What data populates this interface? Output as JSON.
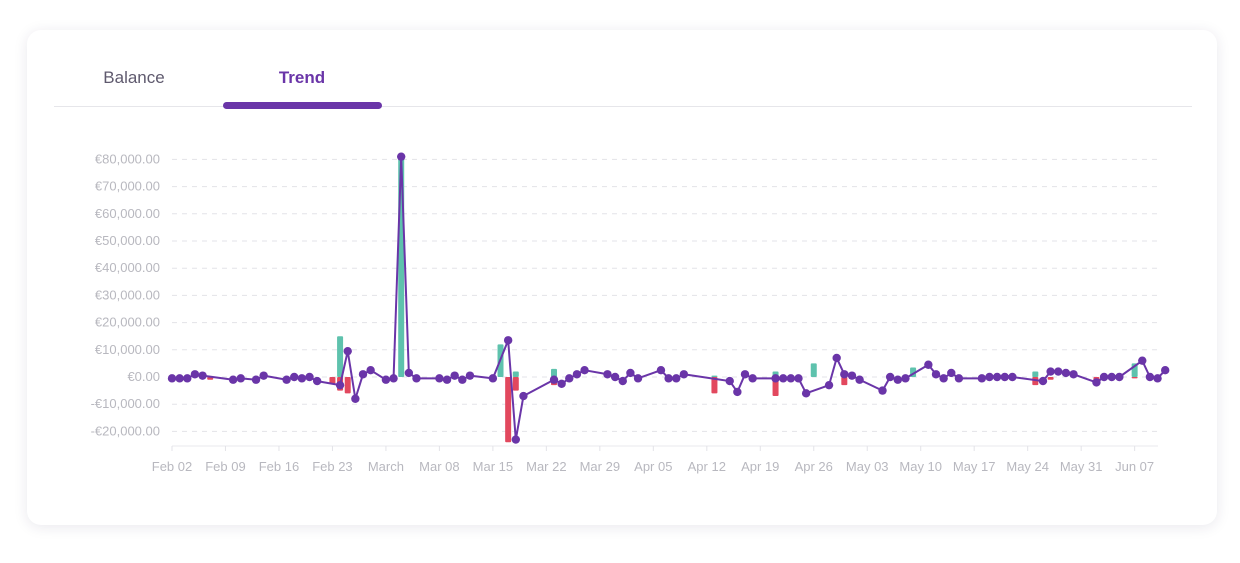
{
  "tabs": [
    {
      "label": "Balance",
      "active": false
    },
    {
      "label": "Trend",
      "active": true
    }
  ],
  "colors": {
    "accent": "#6a35a8",
    "income": "#5ec2ad",
    "expense": "#e2485e",
    "line": "#6a35a8",
    "grid": "#e3e3e8",
    "tick_text": "#b8b8bf"
  },
  "chart_data": {
    "type": "bar",
    "title": "",
    "xlabel": "",
    "ylabel": "",
    "ylim": [
      -22000,
      82000
    ],
    "y_ticks": [
      80000,
      70000,
      60000,
      50000,
      40000,
      30000,
      20000,
      10000,
      0,
      -10000,
      -20000
    ],
    "y_tick_labels": [
      "€80,000.00",
      "€70,000.00",
      "€60,000.00",
      "€50,000.00",
      "€40,000.00",
      "€30,000.00",
      "€20,000.00",
      "€10,000.00",
      "€0.00",
      "-€10,000.00",
      "-€20,000.00"
    ],
    "x_ticks": [
      "Feb 02",
      "Feb 09",
      "Feb 16",
      "Feb 23",
      "March",
      "Mar 08",
      "Mar 15",
      "Mar 22",
      "Mar 29",
      "Apr 05",
      "Apr 12",
      "Apr 19",
      "Apr 26",
      "May 03",
      "May 10",
      "May 17",
      "May 24",
      "May 31",
      "Jun 07"
    ],
    "grid": true,
    "legend": "none",
    "series": [
      {
        "name": "",
        "kind": "bars-income",
        "points": [
          {
            "date": "2021-02-24",
            "value": 15000
          },
          {
            "date": "2021-02-27",
            "value": 2000
          },
          {
            "date": "2021-03-04",
            "value": 81000
          },
          {
            "date": "2021-03-17",
            "value": 12000
          },
          {
            "date": "2021-03-19",
            "value": 2000
          },
          {
            "date": "2021-03-24",
            "value": 3000
          },
          {
            "date": "2021-04-14",
            "value": 500
          },
          {
            "date": "2021-04-22",
            "value": 2000
          },
          {
            "date": "2021-04-27",
            "value": 5000
          },
          {
            "date": "2021-05-10",
            "value": 3500
          },
          {
            "date": "2021-05-26",
            "value": 2000
          },
          {
            "date": "2021-06-08",
            "value": 5000
          }
        ]
      },
      {
        "name": "",
        "kind": "bars-expense",
        "points": [
          {
            "date": "2021-02-07",
            "value": -1000
          },
          {
            "date": "2021-02-23",
            "value": -2500
          },
          {
            "date": "2021-02-24",
            "value": -5000
          },
          {
            "date": "2021-02-25",
            "value": -6000
          },
          {
            "date": "2021-03-18",
            "value": -24000
          },
          {
            "date": "2021-03-19",
            "value": -5000
          },
          {
            "date": "2021-03-24",
            "value": -3000
          },
          {
            "date": "2021-04-14",
            "value": -6000
          },
          {
            "date": "2021-04-22",
            "value": -7000
          },
          {
            "date": "2021-05-01",
            "value": -3000
          },
          {
            "date": "2021-05-26",
            "value": -3000
          },
          {
            "date": "2021-05-28",
            "value": -1000
          },
          {
            "date": "2021-06-03",
            "value": -1500
          },
          {
            "date": "2021-06-08",
            "value": -500
          }
        ]
      },
      {
        "name": "",
        "kind": "line",
        "points": [
          {
            "date": "2021-02-02",
            "value": -500
          },
          {
            "date": "2021-02-03",
            "value": -500
          },
          {
            "date": "2021-02-04",
            "value": -500
          },
          {
            "date": "2021-02-05",
            "value": 1000
          },
          {
            "date": "2021-02-06",
            "value": 500
          },
          {
            "date": "2021-02-10",
            "value": -1000
          },
          {
            "date": "2021-02-11",
            "value": -500
          },
          {
            "date": "2021-02-13",
            "value": -1000
          },
          {
            "date": "2021-02-14",
            "value": 500
          },
          {
            "date": "2021-02-17",
            "value": -1000
          },
          {
            "date": "2021-02-18",
            "value": 0
          },
          {
            "date": "2021-02-19",
            "value": -500
          },
          {
            "date": "2021-02-20",
            "value": 0
          },
          {
            "date": "2021-02-21",
            "value": -1500
          },
          {
            "date": "2021-02-24",
            "value": -3000
          },
          {
            "date": "2021-02-25",
            "value": 9500
          },
          {
            "date": "2021-02-26",
            "value": -8000
          },
          {
            "date": "2021-02-27",
            "value": 1000
          },
          {
            "date": "2021-02-28",
            "value": 2500
          },
          {
            "date": "2021-03-02",
            "value": -1000
          },
          {
            "date": "2021-03-03",
            "value": -500
          },
          {
            "date": "2021-03-04",
            "value": 81000
          },
          {
            "date": "2021-03-05",
            "value": 1500
          },
          {
            "date": "2021-03-06",
            "value": -500
          },
          {
            "date": "2021-03-09",
            "value": -500
          },
          {
            "date": "2021-03-10",
            "value": -1000
          },
          {
            "date": "2021-03-11",
            "value": 500
          },
          {
            "date": "2021-03-12",
            "value": -1000
          },
          {
            "date": "2021-03-13",
            "value": 500
          },
          {
            "date": "2021-03-16",
            "value": -500
          },
          {
            "date": "2021-03-18",
            "value": 13500
          },
          {
            "date": "2021-03-19",
            "value": -23000
          },
          {
            "date": "2021-03-20",
            "value": -7000
          },
          {
            "date": "2021-03-24",
            "value": -1000
          },
          {
            "date": "2021-03-25",
            "value": -2500
          },
          {
            "date": "2021-03-26",
            "value": -500
          },
          {
            "date": "2021-03-27",
            "value": 1000
          },
          {
            "date": "2021-03-28",
            "value": 2500
          },
          {
            "date": "2021-03-31",
            "value": 1000
          },
          {
            "date": "2021-04-01",
            "value": 0
          },
          {
            "date": "2021-04-02",
            "value": -1500
          },
          {
            "date": "2021-04-03",
            "value": 1500
          },
          {
            "date": "2021-04-04",
            "value": -500
          },
          {
            "date": "2021-04-07",
            "value": 2500
          },
          {
            "date": "2021-04-08",
            "value": -500
          },
          {
            "date": "2021-04-09",
            "value": -500
          },
          {
            "date": "2021-04-10",
            "value": 1000
          },
          {
            "date": "2021-04-16",
            "value": -1500
          },
          {
            "date": "2021-04-17",
            "value": -5500
          },
          {
            "date": "2021-04-18",
            "value": 1000
          },
          {
            "date": "2021-04-19",
            "value": -500
          },
          {
            "date": "2021-04-22",
            "value": -500
          },
          {
            "date": "2021-04-23",
            "value": -500
          },
          {
            "date": "2021-04-24",
            "value": -500
          },
          {
            "date": "2021-04-25",
            "value": -500
          },
          {
            "date": "2021-04-26",
            "value": -6000
          },
          {
            "date": "2021-04-29",
            "value": -3000
          },
          {
            "date": "2021-04-30",
            "value": 7000
          },
          {
            "date": "2021-05-01",
            "value": 1000
          },
          {
            "date": "2021-05-02",
            "value": 500
          },
          {
            "date": "2021-05-03",
            "value": -1000
          },
          {
            "date": "2021-05-06",
            "value": -5000
          },
          {
            "date": "2021-05-07",
            "value": 0
          },
          {
            "date": "2021-05-08",
            "value": -1000
          },
          {
            "date": "2021-05-09",
            "value": -500
          },
          {
            "date": "2021-05-12",
            "value": 4500
          },
          {
            "date": "2021-05-13",
            "value": 1000
          },
          {
            "date": "2021-05-14",
            "value": -500
          },
          {
            "date": "2021-05-15",
            "value": 1500
          },
          {
            "date": "2021-05-16",
            "value": -500
          },
          {
            "date": "2021-05-19",
            "value": -500
          },
          {
            "date": "2021-05-20",
            "value": 0
          },
          {
            "date": "2021-05-21",
            "value": 0
          },
          {
            "date": "2021-05-22",
            "value": 0
          },
          {
            "date": "2021-05-23",
            "value": 0
          },
          {
            "date": "2021-05-27",
            "value": -1500
          },
          {
            "date": "2021-05-28",
            "value": 2000
          },
          {
            "date": "2021-05-29",
            "value": 2000
          },
          {
            "date": "2021-05-30",
            "value": 1500
          },
          {
            "date": "2021-05-31",
            "value": 1000
          },
          {
            "date": "2021-06-03",
            "value": -2000
          },
          {
            "date": "2021-06-04",
            "value": 0
          },
          {
            "date": "2021-06-05",
            "value": 0
          },
          {
            "date": "2021-06-06",
            "value": 0
          },
          {
            "date": "2021-06-09",
            "value": 6000
          },
          {
            "date": "2021-06-10",
            "value": 0
          },
          {
            "date": "2021-06-11",
            "value": -500
          },
          {
            "date": "2021-06-12",
            "value": 2500
          }
        ]
      }
    ]
  }
}
